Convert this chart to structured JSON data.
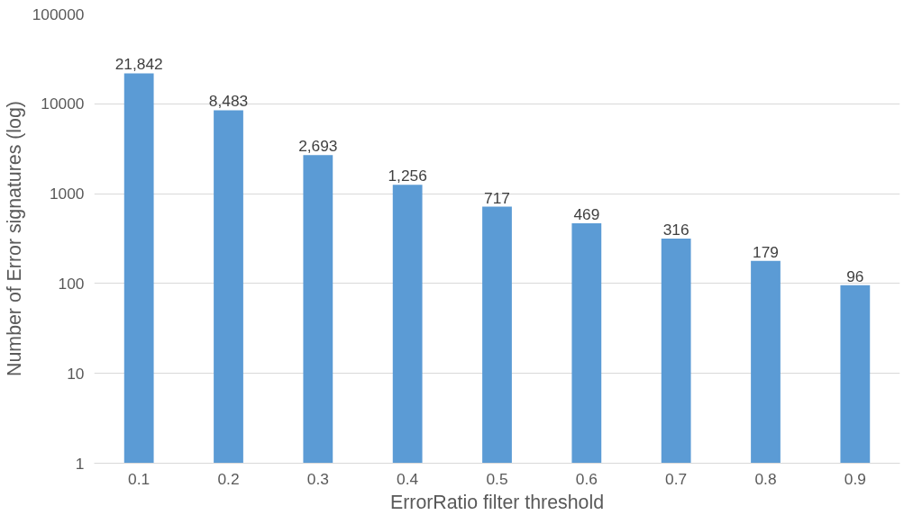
{
  "chart_data": {
    "type": "bar",
    "xlabel": "ErrorRatio filter threshold",
    "ylabel": "Number of Error signatures (log)",
    "categories": [
      "0.1",
      "0.2",
      "0.3",
      "0.4",
      "0.5",
      "0.6",
      "0.7",
      "0.8",
      "0.9"
    ],
    "values": [
      21842,
      8483,
      2693,
      1256,
      717,
      469,
      316,
      179,
      96
    ],
    "value_labels": [
      "21,842",
      "8,483",
      "2,693",
      "1,256",
      "717",
      "469",
      "316",
      "179",
      "96"
    ],
    "color": "#5b9bd5",
    "log": "y",
    "ylim": [
      1,
      100000
    ],
    "yticks": [
      1,
      10,
      100,
      1000,
      10000,
      100000
    ],
    "grid": "y"
  }
}
